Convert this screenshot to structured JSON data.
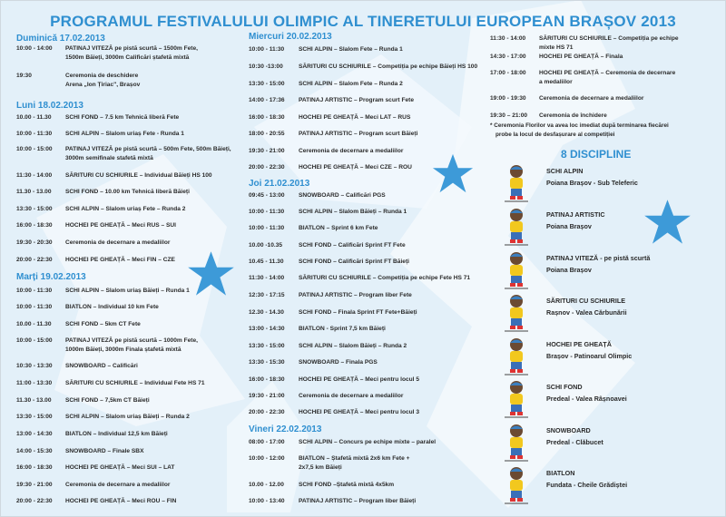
{
  "title": "PROGRAMUL FESTIVALULUI OLIMPIC AL TINERETULUI EUROPEAN BRAȘOV 2013",
  "colors": {
    "accent": "#2f8fd0",
    "background": "#e3f0f9",
    "star": "#3d9ad8"
  },
  "columns": [
    {
      "days": [
        {
          "heading": "Duminică 17.02.2013",
          "rows": [
            {
              "time": "10:00 - 14:00",
              "lines": [
                "PATINAJ VITEZĂ pe pistă scurtă – 1500m Fete,",
                "1500m Băieți, 3000m Calificări ștafetă mixtă"
              ]
            },
            {
              "time": "19:30",
              "lines": [
                "Ceremonia de deschidere",
                "Arena „Ion Țiriac\", Brașov"
              ]
            }
          ]
        },
        {
          "heading": "Luni 18.02.2013",
          "rows": [
            {
              "time": "10.00 - 11.30",
              "lines": [
                "SCHI FOND  – 7.5 km Tehnică liberă Fete"
              ]
            },
            {
              "time": "10:00 - 11:30",
              "lines": [
                "SCHI ALPIN – Slalom uriaș Fete - Runda 1"
              ]
            },
            {
              "time": "10:00 - 15:00",
              "lines": [
                "PATINAJ VITEZĂ pe pistă scurtă – 500m Fete, 500m Băieți,",
                "3000m semifinale stafetă mixtă"
              ]
            },
            {
              "time": "11:30 - 14:00",
              "lines": [
                "SĂRITURI CU SCHIURILE – Individual Băieți HS 100"
              ]
            },
            {
              "time": "11.30 - 13.00",
              "lines": [
                "SCHI FOND – 10.00 km Tehnică liberă Băieți"
              ]
            },
            {
              "time": "13:30 - 15:00",
              "lines": [
                "SCHI ALPIN – Slalom uriaș Fete – Runda 2"
              ]
            },
            {
              "time": "16:00 - 18:30",
              "lines": [
                "HOCHEI PE GHEAȚĂ – Meci RUS – SUI"
              ]
            },
            {
              "time": "19:30 - 20:30",
              "lines": [
                "Ceremonia de decernare a medaliilor"
              ]
            },
            {
              "time": "20:00 - 22:30",
              "lines": [
                "HOCHEI PE GHEAȚĂ – Meci  FIN – CZE"
              ]
            }
          ]
        },
        {
          "heading": "Marți 19.02.2013",
          "rows": [
            {
              "time": "10:00 - 11:30",
              "lines": [
                "SCHI ALPIN – Slalom uriaș Băieți – Runda 1"
              ]
            },
            {
              "time": "10:00 - 11:30",
              "lines": [
                "BIATLON – Individual 10 km Fete"
              ]
            },
            {
              "time": "10.00 - 11.30",
              "lines": [
                "SCHI FOND – 5km CT Fete"
              ]
            },
            {
              "time": "10:00 - 15:00",
              "lines": [
                "PATINAJ VITEZĂ pe pistă scurtă – 1000m Fete,",
                "1000m Băieți, 3000m Finala ștafetă mixtă"
              ]
            },
            {
              "time": "10:30 - 13:30",
              "lines": [
                "SNOWBOARD – Calificări"
              ]
            },
            {
              "time": "11:00 - 13:30",
              "lines": [
                "SĂRITURI CU SCHIURILE – Individual Fete  HS 71"
              ]
            },
            {
              "time": "11.30 - 13.00",
              "lines": [
                "SCHI FOND – 7,5km CT Băieți"
              ]
            },
            {
              "time": "13:30 - 15:00",
              "lines": [
                "SCHI ALPIN – Slalom uriaș  Băieți – Runda 2"
              ]
            },
            {
              "time": "13:00 - 14:30",
              "lines": [
                "BIATLON – Individual 12,5 km Băieți"
              ]
            },
            {
              "time": "14:00 - 15:30",
              "lines": [
                "SNOWBOARD – Finale SBX"
              ]
            },
            {
              "time": "16:00 - 18:30",
              "lines": [
                "HOCHEI PE GHEAȚĂ – Meci SUI – LAT"
              ]
            },
            {
              "time": "19:30 - 21:00",
              "lines": [
                "Ceremonia de decernare a medaliilor"
              ]
            },
            {
              "time": "20:00 - 22:30",
              "lines": [
                "HOCHEI PE GHEAȚĂ – Meci ROU – FIN"
              ]
            }
          ]
        }
      ]
    },
    {
      "days": [
        {
          "heading": "Miercuri 20.02.2013",
          "rows": [
            {
              "time": "10:00 - 11:30",
              "lines": [
                "SCHI ALPIN – Slalom Fete – Runda 1"
              ]
            },
            {
              "time": "10:30 -13:00",
              "lines": [
                "SĂRITURI CU SCHIURILE – Competiția pe echipe Băieți HS 100"
              ]
            },
            {
              "time": "13:30 - 15:00",
              "lines": [
                "SCHI ALPIN – Slalom  Fete  – Runda 2"
              ]
            },
            {
              "time": "14:00 - 17:36",
              "lines": [
                "PATINAJ ARTISTIC – Program scurt  Fete"
              ]
            },
            {
              "time": "16:00 - 18:30",
              "lines": [
                "HOCHEI PE GHEAȚĂ – Meci LAT – RUS"
              ]
            },
            {
              "time": "18:00 - 20:55",
              "lines": [
                "PATINAJ ARTISTIC – Program scurt Băieți"
              ]
            },
            {
              "time": "19:30 - 21:00",
              "lines": [
                "Ceremonia de decernare a medaliilor"
              ]
            },
            {
              "time": "20:00 - 22:30",
              "lines": [
                "HOCHEI PE GHEAȚĂ – Meci CZE – ROU"
              ]
            }
          ]
        },
        {
          "heading": "Joi 21.02.2013",
          "rows": [
            {
              "time": "09:45 - 13:00",
              "lines": [
                "SNOWBOARD – Calificări PGS"
              ]
            },
            {
              "time": "10:00 - 11:30",
              "lines": [
                "SCHI ALPIN – Slalom Băieți – Runda 1"
              ]
            },
            {
              "time": "10:00 - 11:30",
              "lines": [
                "BIATLON – Sprint 6 km Fete"
              ]
            },
            {
              "time": "10.00 -10.35",
              "lines": [
                "SCHI FOND – Calificări Sprint FT Fete"
              ]
            },
            {
              "time": "10.45 - 11.30",
              "lines": [
                "SCHI FOND –  Calificări Sprint FT Băieți"
              ]
            },
            {
              "time": "11:30 - 14:00",
              "lines": [
                "SĂRITURI CU SCHIURILE – Competiția pe echipe  Fete HS 71"
              ]
            },
            {
              "time": "12:30 - 17:15",
              "lines": [
                "PATINAJ ARTISTIC – Program liber Fete"
              ]
            },
            {
              "time": "12.30 - 14.30",
              "lines": [
                "SCHI FOND –  Finala Sprint  FT Fete+Băieți"
              ]
            },
            {
              "time": "13:00 - 14:30",
              "lines": [
                "BIATLON - Sprint 7,5 km Băieți"
              ]
            },
            {
              "time": "13:30 - 15:00",
              "lines": [
                "SCHI ALPIN –  Slalom Băieți – Runda 2"
              ]
            },
            {
              "time": "13:30 - 15:30",
              "lines": [
                "SNOWBOARD –  Finala PGS"
              ]
            },
            {
              "time": "16:00 - 18:30",
              "lines": [
                "HOCHEI PE GHEAȚĂ – Meci pentru locul 5"
              ]
            },
            {
              "time": "19:30 - 21:00",
              "lines": [
                "Ceremonia de decernare a medaliilor"
              ]
            },
            {
              "time": "20:00 - 22:30",
              "lines": [
                "HOCHEI PE GHEAȚĂ – Meci pentru locul 3"
              ]
            }
          ]
        },
        {
          "heading": "Vineri 22.02.2013",
          "rows": [
            {
              "time": "08:00 - 17:00",
              "lines": [
                "SCHI ALPIN – Concurs pe echipe mixte – paralel"
              ]
            },
            {
              "time": "10:00 - 12:00",
              "lines": [
                "BIATLON – Ștafetă mixtă 2x6 km Fete +",
                "2x7,5 km Băieți"
              ]
            },
            {
              "time": "10.00 - 12.00",
              "lines": [
                "SCHI FOND –Ștafetă mixtă 4x5km"
              ]
            },
            {
              "time": "10:00 - 13:40",
              "lines": [
                "PATINAJ ARTISTIC – Program liber Băieți"
              ]
            }
          ]
        }
      ]
    },
    {
      "days": [
        {
          "heading": "",
          "rows": [
            {
              "time": "11:30 - 14:00",
              "lines": [
                "SĂRITURI CU SCHIURILE – Competiția pe echipe",
                "mixte HS 71"
              ]
            },
            {
              "time": "14:30 - 17:00",
              "lines": [
                "HOCHEI PE GHEAȚĂ –  Finala"
              ]
            },
            {
              "time": "17:00 - 18:00",
              "lines": [
                "HOCHEI PE GHEAȚĂ – Ceremonia de decernare",
                "a medaliilor"
              ]
            },
            {
              "time": "19:00 - 19:30",
              "lines": [
                "Ceremonia de decernare a medaliilor"
              ]
            },
            {
              "time": "19:30 – 21:00",
              "lines": [
                "Ceremonia de închidere"
              ]
            }
          ]
        }
      ]
    }
  ],
  "note": [
    "* Ceremonia Florilor va avea loc imediat după terminarea fiecărei",
    "probe la locul de desfașurare al competiției"
  ],
  "disciplines_heading": "8 DISCIPLINE",
  "disciplines": [
    {
      "name": "SCHI ALPIN",
      "place": "Poiana Brașov - Sub Teleferic",
      "icon": "mascot-ski-icon"
    },
    {
      "name": "PATINAJ ARTISTIC",
      "place": "Poiana Brașov",
      "icon": "mascot-figure-skating-icon"
    },
    {
      "name": "PATINAJ VITEZĂ - pe pistă scurtă",
      "place": "Poiana Brașov",
      "icon": "mascot-speed-skating-icon"
    },
    {
      "name": "SĂRITURI CU SCHIURILE",
      "place": "Rașnov - Valea Cărbunării",
      "icon": "mascot-ski-jumping-icon"
    },
    {
      "name": "HOCHEI PE GHEAȚĂ",
      "place": "Brașov - Patinoarul Olimpic",
      "icon": "mascot-hockey-icon"
    },
    {
      "name": "SCHI FOND",
      "place": "Predeal - Valea Râșnoavei",
      "icon": "mascot-cross-country-icon"
    },
    {
      "name": "SNOWBOARD",
      "place": "Predeal - Clăbucet",
      "icon": "mascot-snowboard-icon"
    },
    {
      "name": "BIATLON",
      "place": "Fundata - Cheile Grădiștei",
      "icon": "mascot-biathlon-icon"
    }
  ]
}
